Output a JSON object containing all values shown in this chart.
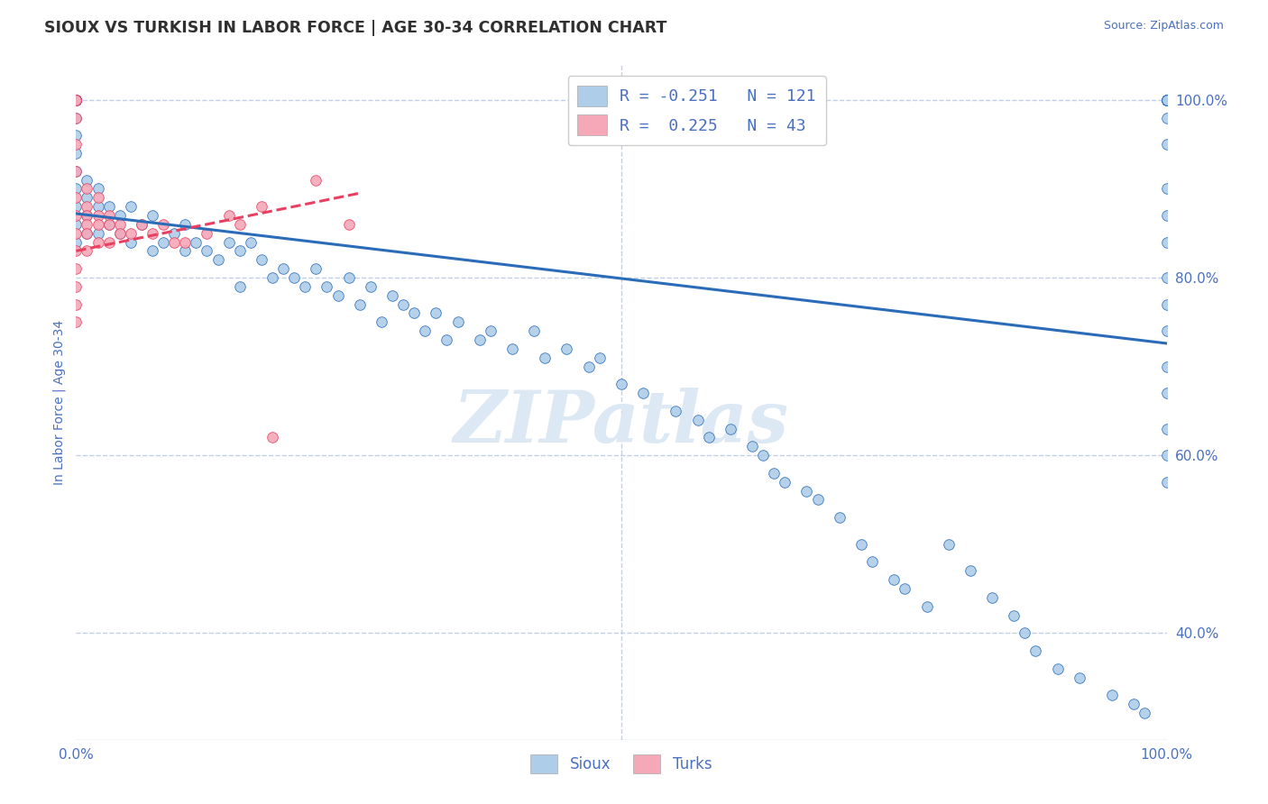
{
  "title": "SIOUX VS TURKISH IN LABOR FORCE | AGE 30-34 CORRELATION CHART",
  "source_text": "Source: ZipAtlas.com",
  "ylabel": "In Labor Force | Age 30-34",
  "xlim": [
    0.0,
    1.0
  ],
  "ylim": [
    0.28,
    1.04
  ],
  "y_ticks_right": [
    0.4,
    0.6,
    0.8,
    1.0
  ],
  "y_tick_labels_right": [
    "40.0%",
    "60.0%",
    "80.0%",
    "100.0%"
  ],
  "legend_blue_label": "R = -0.251   N = 121",
  "legend_pink_label": "R =  0.225   N = 43",
  "legend_title_blue": "Sioux",
  "legend_title_pink": "Turks",
  "blue_color": "#aecde8",
  "pink_color": "#f4a8b8",
  "trend_blue_color": "#2b6cb8",
  "trend_pink_color": "#e84060",
  "background_color": "#ffffff",
  "grid_color": "#c0d0e8",
  "watermark_color": "#dce8f4",
  "title_color": "#303030",
  "axis_label_color": "#4a70c0",
  "tick_label_color": "#4a70c0",
  "blue_trend_y_start": 0.872,
  "blue_trend_y_end": 0.726,
  "pink_trend_y_start": 0.83,
  "pink_trend_y_end": 0.895,
  "pink_trend_x_end": 0.26,
  "blue_x": [
    0.0,
    0.0,
    0.0,
    0.0,
    0.0,
    0.0,
    0.0,
    0.0,
    0.0,
    0.0,
    0.0,
    0.0,
    0.0,
    0.0,
    0.0,
    0.0,
    0.0,
    0.0,
    0.0,
    0.0,
    0.01,
    0.01,
    0.01,
    0.01,
    0.02,
    0.02,
    0.02,
    0.03,
    0.03,
    0.04,
    0.04,
    0.05,
    0.05,
    0.06,
    0.07,
    0.07,
    0.08,
    0.09,
    0.1,
    0.1,
    0.11,
    0.12,
    0.13,
    0.14,
    0.15,
    0.15,
    0.16,
    0.17,
    0.18,
    0.19,
    0.2,
    0.21,
    0.22,
    0.23,
    0.24,
    0.25,
    0.26,
    0.27,
    0.28,
    0.29,
    0.3,
    0.31,
    0.32,
    0.33,
    0.34,
    0.35,
    0.37,
    0.38,
    0.4,
    0.42,
    0.43,
    0.45,
    0.47,
    0.48,
    0.5,
    0.52,
    0.55,
    0.57,
    0.58,
    0.6,
    0.62,
    0.63,
    0.64,
    0.65,
    0.67,
    0.68,
    0.7,
    0.72,
    0.73,
    0.75,
    0.76,
    0.78,
    0.8,
    0.82,
    0.84,
    0.86,
    0.87,
    0.88,
    0.9,
    0.92,
    0.95,
    0.97,
    0.98,
    1.0,
    1.0,
    1.0,
    1.0,
    1.0,
    1.0,
    1.0,
    1.0,
    1.0,
    1.0,
    1.0,
    1.0,
    1.0,
    1.0,
    1.0,
    1.0,
    1.0,
    1.0,
    1.0,
    1.0,
    1.0
  ],
  "blue_y": [
    1.0,
    1.0,
    1.0,
    1.0,
    1.0,
    1.0,
    1.0,
    1.0,
    1.0,
    1.0,
    1.0,
    1.0,
    0.98,
    0.96,
    0.94,
    0.92,
    0.9,
    0.88,
    0.86,
    0.84,
    0.91,
    0.89,
    0.87,
    0.85,
    0.9,
    0.88,
    0.85,
    0.88,
    0.86,
    0.87,
    0.85,
    0.88,
    0.84,
    0.86,
    0.87,
    0.83,
    0.84,
    0.85,
    0.86,
    0.83,
    0.84,
    0.83,
    0.82,
    0.84,
    0.83,
    0.79,
    0.84,
    0.82,
    0.8,
    0.81,
    0.8,
    0.79,
    0.81,
    0.79,
    0.78,
    0.8,
    0.77,
    0.79,
    0.75,
    0.78,
    0.77,
    0.76,
    0.74,
    0.76,
    0.73,
    0.75,
    0.73,
    0.74,
    0.72,
    0.74,
    0.71,
    0.72,
    0.7,
    0.71,
    0.68,
    0.67,
    0.65,
    0.64,
    0.62,
    0.63,
    0.61,
    0.6,
    0.58,
    0.57,
    0.56,
    0.55,
    0.53,
    0.5,
    0.48,
    0.46,
    0.45,
    0.43,
    0.5,
    0.47,
    0.44,
    0.42,
    0.4,
    0.38,
    0.36,
    0.35,
    0.33,
    0.32,
    0.31,
    1.0,
    1.0,
    1.0,
    1.0,
    1.0,
    1.0,
    1.0,
    1.0,
    0.98,
    0.95,
    0.9,
    0.87,
    0.84,
    0.8,
    0.77,
    0.74,
    0.7,
    0.67,
    0.63,
    0.6,
    0.57
  ],
  "pink_x": [
    0.0,
    0.0,
    0.0,
    0.0,
    0.0,
    0.0,
    0.0,
    0.0,
    0.0,
    0.0,
    0.0,
    0.0,
    0.0,
    0.0,
    0.0,
    0.01,
    0.01,
    0.01,
    0.01,
    0.01,
    0.01,
    0.02,
    0.02,
    0.02,
    0.02,
    0.03,
    0.03,
    0.03,
    0.04,
    0.04,
    0.05,
    0.06,
    0.07,
    0.08,
    0.09,
    0.1,
    0.12,
    0.14,
    0.15,
    0.17,
    0.18,
    0.22,
    0.25
  ],
  "pink_y": [
    1.0,
    1.0,
    1.0,
    1.0,
    0.98,
    0.95,
    0.92,
    0.89,
    0.87,
    0.85,
    0.83,
    0.81,
    0.79,
    0.77,
    0.75,
    0.9,
    0.88,
    0.87,
    0.86,
    0.85,
    0.83,
    0.89,
    0.87,
    0.86,
    0.84,
    0.87,
    0.86,
    0.84,
    0.86,
    0.85,
    0.85,
    0.86,
    0.85,
    0.86,
    0.84,
    0.84,
    0.85,
    0.87,
    0.86,
    0.88,
    0.62,
    0.91,
    0.86
  ]
}
